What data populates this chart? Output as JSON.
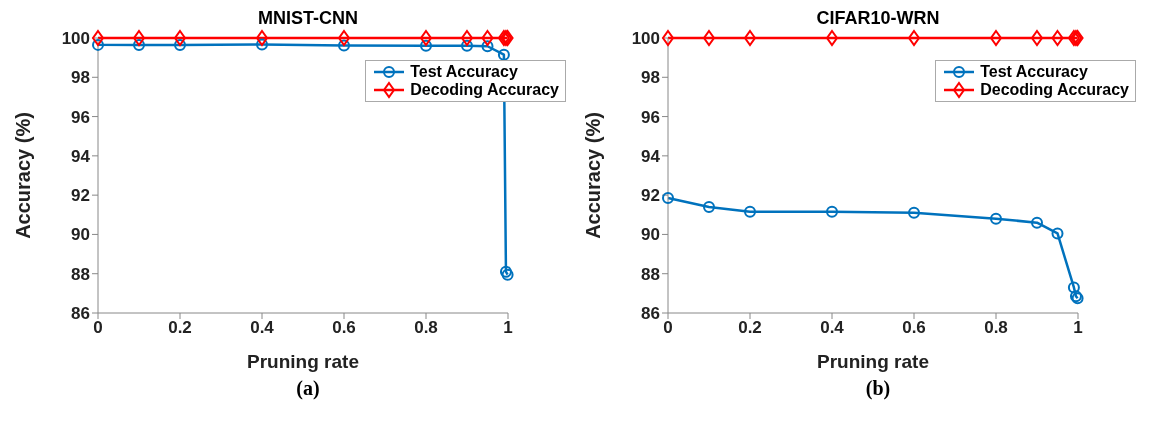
{
  "chart_data": [
    {
      "type": "line",
      "title": "MNIST-CNN",
      "xlabel": "Pruning rate",
      "ylabel": "Accuracy (%)",
      "annotations": [
        "(a)"
      ],
      "xlim": [
        0,
        1
      ],
      "xticks": [
        0,
        0.2,
        0.4,
        0.6,
        0.8,
        1
      ],
      "ylim": [
        86,
        100
      ],
      "yticks": [
        86,
        88,
        90,
        92,
        94,
        96,
        98,
        100
      ],
      "legend": "top right",
      "line_style": "solid",
      "series": [
        {
          "name": "Test Accuracy",
          "color": "#0072bd",
          "marker": "circle",
          "x": [
            0,
            0.1,
            0.2,
            0.4,
            0.6,
            0.8,
            0.9,
            0.95,
            0.99,
            0.995,
            0.999
          ],
          "values": [
            99.65,
            99.64,
            99.64,
            99.67,
            99.62,
            99.6,
            99.6,
            99.58,
            99.15,
            88.1,
            87.95
          ]
        },
        {
          "name": "Decoding Accuracy",
          "color": "#ff0000",
          "marker": "diamond",
          "x": [
            0,
            0.1,
            0.2,
            0.4,
            0.6,
            0.8,
            0.9,
            0.95,
            0.99,
            0.995,
            0.999
          ],
          "values": [
            100,
            100,
            100,
            100,
            100,
            100,
            100,
            100,
            100,
            100,
            100
          ]
        }
      ]
    },
    {
      "type": "line",
      "title": "CIFAR10-WRN",
      "xlabel": "Pruning rate",
      "ylabel": "Accuracy (%)",
      "annotations": [
        "(b)"
      ],
      "xlim": [
        0,
        1
      ],
      "xticks": [
        0,
        0.2,
        0.4,
        0.6,
        0.8,
        1
      ],
      "ylim": [
        86,
        100
      ],
      "yticks": [
        86,
        88,
        90,
        92,
        94,
        96,
        98,
        100
      ],
      "legend": "top right",
      "line_style": "solid",
      "series": [
        {
          "name": "Test Accuracy",
          "color": "#0072bd",
          "marker": "circle",
          "x": [
            0,
            0.1,
            0.2,
            0.4,
            0.6,
            0.8,
            0.9,
            0.95,
            0.99,
            0.995,
            0.999
          ],
          "values": [
            91.85,
            91.4,
            91.15,
            91.15,
            91.1,
            90.8,
            90.6,
            90.05,
            87.3,
            86.85,
            86.75
          ]
        },
        {
          "name": "Decoding Accuracy",
          "color": "#ff0000",
          "marker": "diamond",
          "x": [
            0,
            0.1,
            0.2,
            0.4,
            0.6,
            0.8,
            0.9,
            0.95,
            0.99,
            0.995,
            0.999
          ],
          "values": [
            100,
            100,
            100,
            100,
            100,
            100,
            100,
            100,
            100,
            100,
            100
          ]
        }
      ]
    }
  ]
}
